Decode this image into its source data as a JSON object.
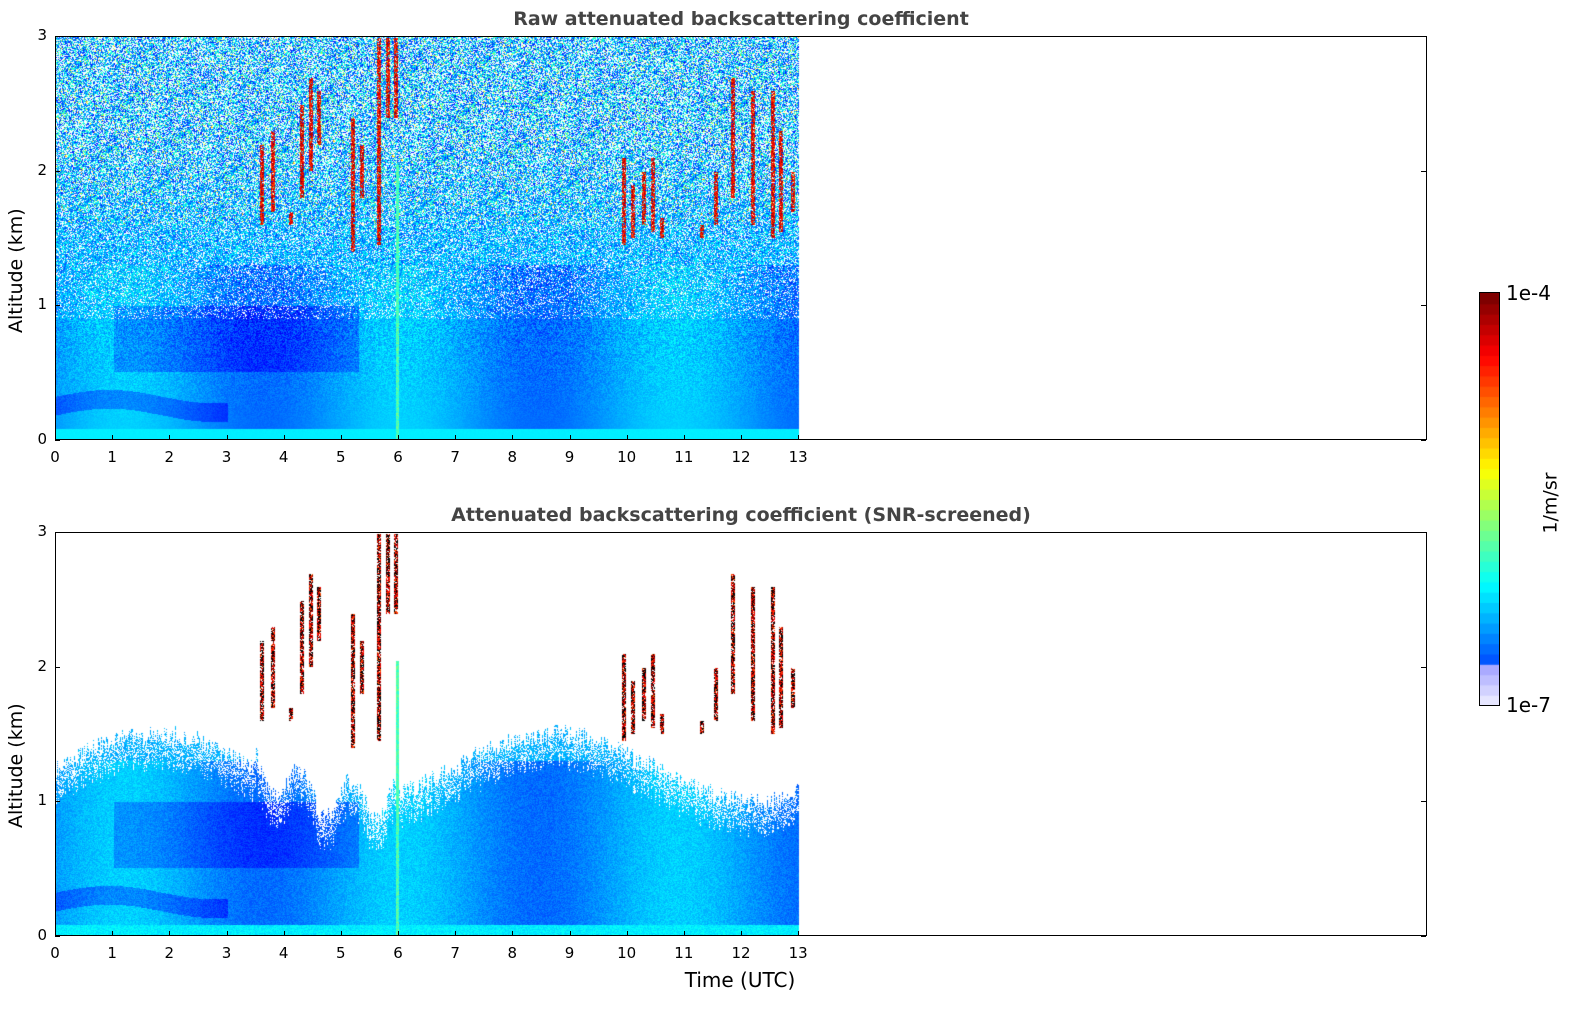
{
  "chart_data": [
    {
      "type": "heatmap",
      "title": "Raw attenuated backscattering coefficient",
      "xlabel": "",
      "ylabel": "Altitude (km)",
      "xlim": [
        0,
        24
      ],
      "ylim": [
        0,
        3
      ],
      "xticks": [
        "0",
        "1",
        "2",
        "3",
        "4",
        "5",
        "6",
        "7",
        "8",
        "9",
        "10",
        "11",
        "12",
        "13"
      ],
      "yticks": [
        "0",
        "1",
        "2",
        "3"
      ],
      "data_extent_x": [
        0,
        13
      ],
      "screened": false,
      "grid": false
    },
    {
      "type": "heatmap",
      "title": "Attenuated backscattering coefficient (SNR-screened)",
      "xlabel": "Time (UTC)",
      "ylabel": "Altitude (km)",
      "xlim": [
        0,
        24
      ],
      "ylim": [
        0,
        3
      ],
      "xticks": [
        "0",
        "1",
        "2",
        "3",
        "4",
        "5",
        "6",
        "7",
        "8",
        "9",
        "10",
        "11",
        "12",
        "13"
      ],
      "yticks": [
        "0",
        "1",
        "2",
        "3"
      ],
      "data_extent_x": [
        0,
        13
      ],
      "screened": true,
      "grid": false
    }
  ],
  "colorbar": {
    "max_label": "1e-4",
    "min_label": "1e-7",
    "unit": "1/m/sr",
    "colormap": "jet"
  }
}
